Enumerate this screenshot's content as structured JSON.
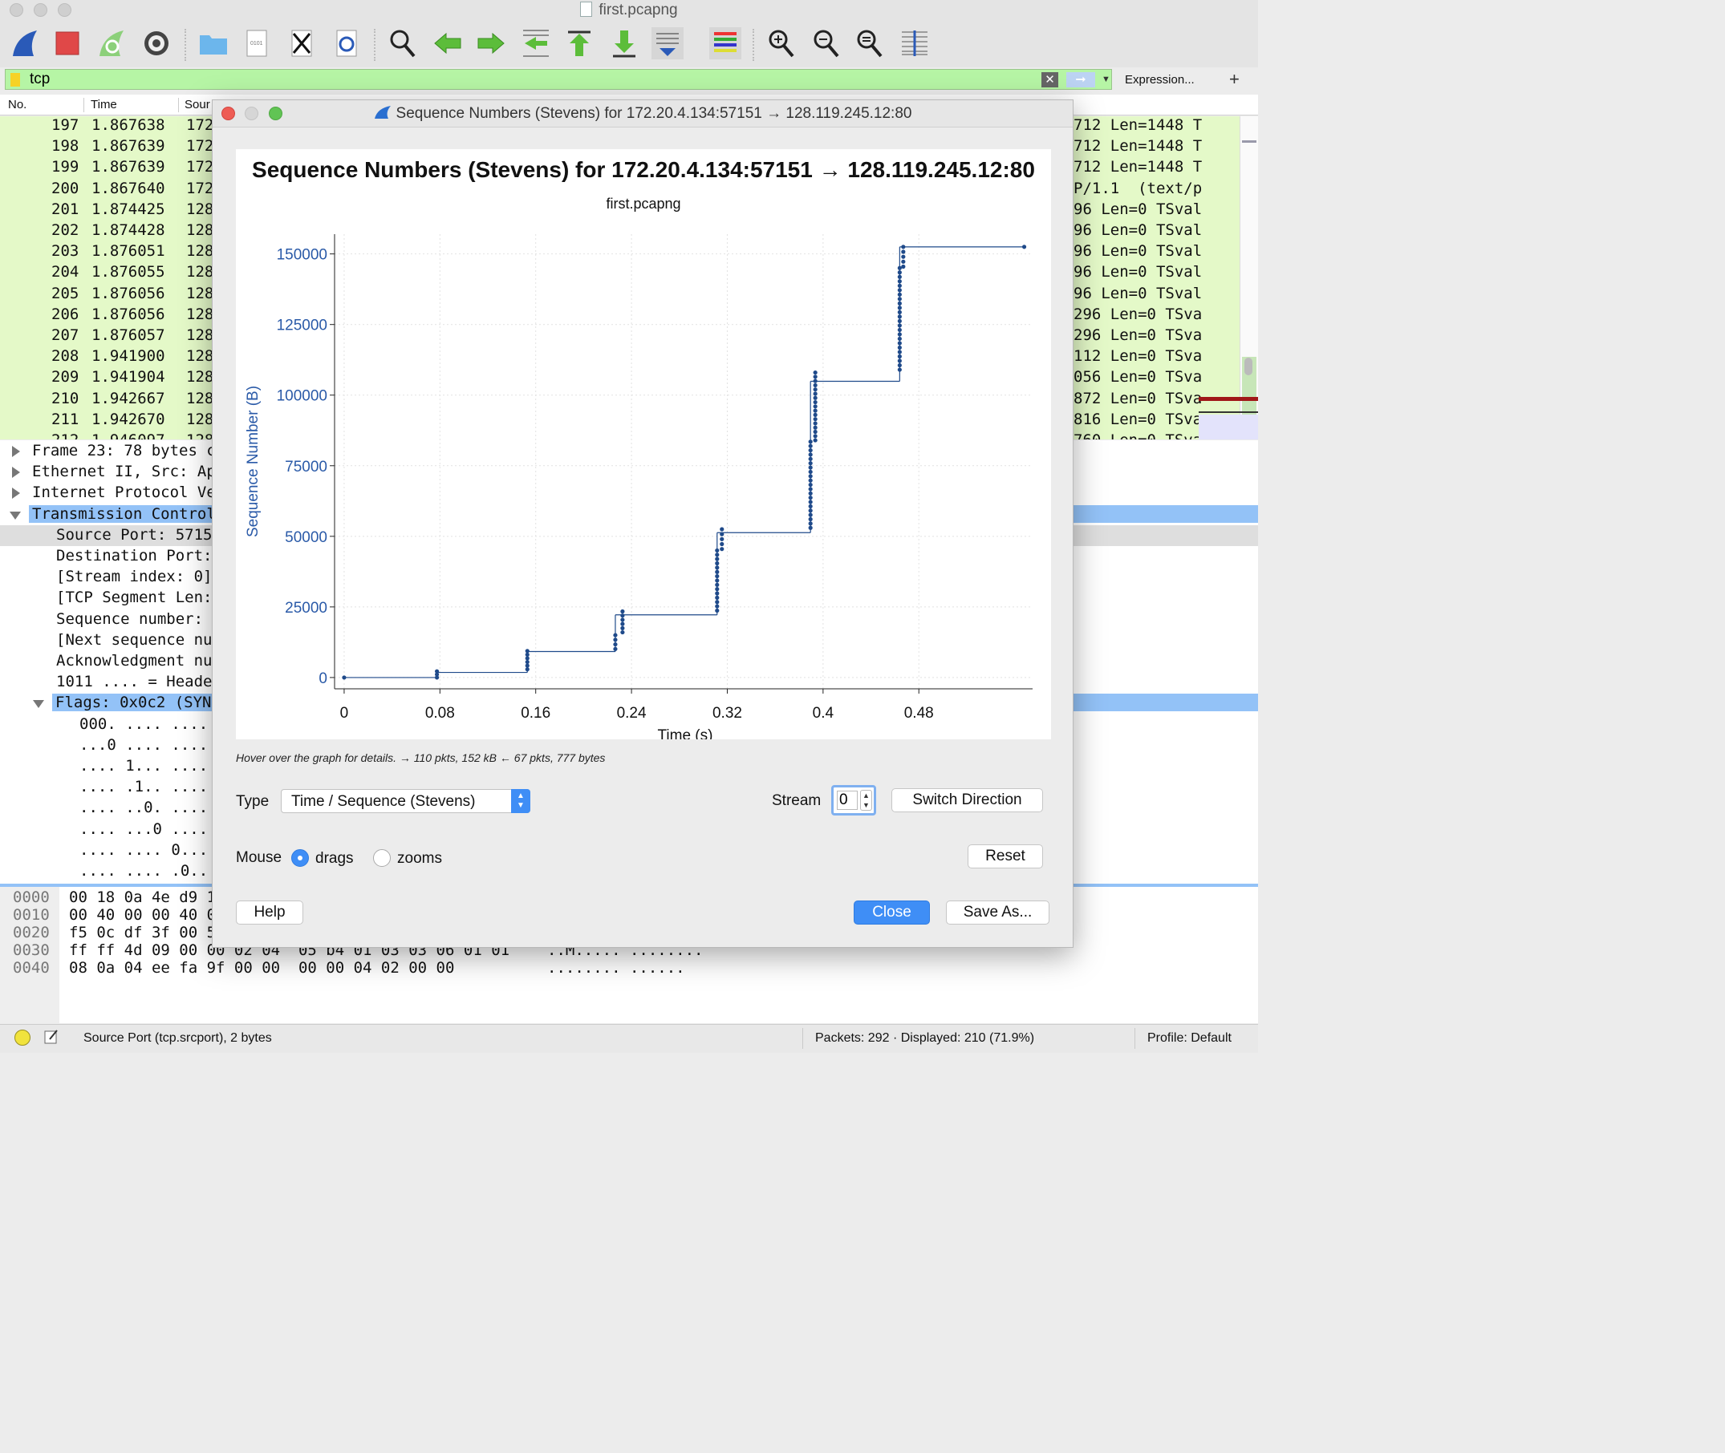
{
  "window": {
    "title": "first.pcapng"
  },
  "filter": {
    "value": "tcp",
    "expression_label": "Expression...",
    "add_label": "+"
  },
  "packet_list": {
    "columns": [
      "No.",
      "Time",
      "Sour"
    ],
    "rows": [
      {
        "no": "197",
        "time": "1.867638",
        "src": "172",
        "info": "712 Len=1448 T"
      },
      {
        "no": "198",
        "time": "1.867639",
        "src": "172",
        "info": "712 Len=1448 T"
      },
      {
        "no": "199",
        "time": "1.867639",
        "src": "172",
        "info": "712 Len=1448 T"
      },
      {
        "no": "200",
        "time": "1.867640",
        "src": "172",
        "info": "P/1.1  (text/p"
      },
      {
        "no": "201",
        "time": "1.874425",
        "src": "128",
        "info": "96 Len=0 TSval"
      },
      {
        "no": "202",
        "time": "1.874428",
        "src": "128",
        "info": "96 Len=0 TSval"
      },
      {
        "no": "203",
        "time": "1.876051",
        "src": "128",
        "info": "96 Len=0 TSval"
      },
      {
        "no": "204",
        "time": "1.876055",
        "src": "128",
        "info": "96 Len=0 TSval"
      },
      {
        "no": "205",
        "time": "1.876056",
        "src": "128",
        "info": "96 Len=0 TSval"
      },
      {
        "no": "206",
        "time": "1.876056",
        "src": "128",
        "info": "296 Len=0 TSva"
      },
      {
        "no": "207",
        "time": "1.876057",
        "src": "128",
        "info": "296 Len=0 TSva"
      },
      {
        "no": "208",
        "time": "1.941900",
        "src": "128",
        "info": "112 Len=0 TSva"
      },
      {
        "no": "209",
        "time": "1.941904",
        "src": "128",
        "info": "056 Len=0 TSva"
      },
      {
        "no": "210",
        "time": "1.942667",
        "src": "128",
        "info": "872 Len=0 TSva"
      },
      {
        "no": "211",
        "time": "1.942670",
        "src": "128",
        "info": "816 Len=0 TSva"
      },
      {
        "no": "212",
        "time": "1.946097",
        "src": "128",
        "info": "760 Len=0 TSva"
      }
    ]
  },
  "details": {
    "rows": [
      {
        "text": "Frame 23: 78 bytes c",
        "state": "collapsed"
      },
      {
        "text": "Ethernet II, Src: Ap",
        "state": "collapsed"
      },
      {
        "text": "Internet Protocol Ve",
        "state": "collapsed"
      },
      {
        "text": "Transmission Control",
        "state": "expanded"
      },
      {
        "text": "Source Port: 5715",
        "state": "leaf"
      },
      {
        "text": "Destination Port:",
        "state": "leaf"
      },
      {
        "text": "[Stream index: 0]",
        "state": "leaf"
      },
      {
        "text": "[TCP Segment Len:",
        "state": "leaf"
      },
      {
        "text": "Sequence number:",
        "state": "leaf"
      },
      {
        "text": "[Next sequence nu",
        "state": "leaf"
      },
      {
        "text": "Acknowledgment nu",
        "state": "leaf"
      },
      {
        "text": "1011 .... = Heade",
        "state": "leaf"
      },
      {
        "text": "Flags: 0x0c2 (SYN",
        "state": "expanded"
      },
      {
        "text": "000. .... ....",
        "state": "leaf"
      },
      {
        "text": "...0 .... ....",
        "state": "leaf"
      },
      {
        "text": ".... 1... ....",
        "state": "leaf"
      },
      {
        "text": ".... .1.. ....",
        "state": "leaf"
      },
      {
        "text": ".... ..0. ....",
        "state": "leaf"
      },
      {
        "text": ".... ...0 ....",
        "state": "leaf"
      },
      {
        "text": ".... .... 0...",
        "state": "leaf"
      },
      {
        "text": ".... .... .0..",
        "state": "leaf"
      }
    ]
  },
  "hex": {
    "rows": [
      {
        "offset": "0000",
        "bytes": "00 18 0a 4e d9 1",
        "ascii": ""
      },
      {
        "offset": "0010",
        "bytes": "00 40 00 00 40 0",
        "ascii": ""
      },
      {
        "offset": "0020",
        "bytes": "f5 0c df 3f 00 5",
        "ascii": ""
      },
      {
        "offset": "0030",
        "bytes": "ff ff 4d 09 00 00 02 04  05 b4 01 03 03 06 01 01",
        "ascii": "..M..... ........"
      },
      {
        "offset": "0040",
        "bytes": "08 0a 04 ee fa 9f 00 00  00 00 04 02 00 00",
        "ascii": "........ ......"
      }
    ]
  },
  "status": {
    "field": "Source Port (tcp.srcport), 2 bytes",
    "packets": "Packets: 292 · Displayed: 210 (71.9%)",
    "profile": "Profile: Default"
  },
  "dialog": {
    "title": "Sequence Numbers (Stevens) for 172.20.4.134:57151 → 128.119.245.12:80",
    "hover_hint": "Hover over the graph for details. → 110 pkts, 152 kB ← 67 pkts, 777 bytes",
    "type_label": "Type",
    "type_value": "Time / Sequence (Stevens)",
    "stream_label": "Stream",
    "stream_value": "0",
    "switch_direction": "Switch Direction",
    "mouse_label": "Mouse",
    "mouse_drags": "drags",
    "mouse_zooms": "zooms",
    "mouse_selected": "drags",
    "reset": "Reset",
    "help": "Help",
    "close": "Close",
    "save_as": "Save As..."
  },
  "chart_data": {
    "type": "scatter",
    "title": "Sequence Numbers (Stevens) for 172.20.4.134:57151 → 128.119.245.12:80",
    "subtitle": "first.pcapng",
    "xlabel": "Time (s)",
    "ylabel": "Sequence Number (B)",
    "xlim": [
      -0.008,
      0.575
    ],
    "ylim": [
      -4000,
      157000
    ],
    "xticks": [
      "0",
      "0.08",
      "0.16",
      "0.24",
      "0.32",
      "0.4",
      "0.48"
    ],
    "yticks": [
      "0",
      "25000",
      "50000",
      "75000",
      "100000",
      "125000",
      "150000"
    ],
    "grid": true,
    "colors": {
      "series": "#1f4a8a",
      "axis_text": "#2a5aa8",
      "grid": "#e2e2e2"
    },
    "bursts": [
      {
        "t": 0.0,
        "from": 0,
        "to": 0,
        "count": 1
      },
      {
        "t": 0.0775,
        "from": 0,
        "to": 2200,
        "count": 3
      },
      {
        "t": 0.153,
        "from": 2900,
        "to": 9400,
        "count": 6
      },
      {
        "t": 0.2265,
        "from": 10100,
        "to": 15000,
        "count": 4
      },
      {
        "t": 0.2325,
        "from": 16000,
        "to": 23400,
        "count": 6
      },
      {
        "t": 0.3115,
        "from": 23700,
        "to": 45000,
        "count": 15
      },
      {
        "t": 0.3155,
        "from": 45500,
        "to": 52500,
        "count": 5
      },
      {
        "t": 0.3895,
        "from": 53000,
        "to": 83500,
        "count": 21
      },
      {
        "t": 0.3935,
        "from": 84000,
        "to": 108000,
        "count": 17
      },
      {
        "t": 0.464,
        "from": 109000,
        "to": 145000,
        "count": 24
      },
      {
        "t": 0.467,
        "from": 145500,
        "to": 152500,
        "count": 5
      },
      {
        "t": 0.568,
        "from": 152500,
        "to": 152500,
        "count": 1
      }
    ],
    "window_steps": [
      {
        "x0": 0.0,
        "x1": 0.0775,
        "y": 0
      },
      {
        "x0": 0.0775,
        "x1": 0.153,
        "y": 1800
      },
      {
        "x0": 0.153,
        "x1": 0.2265,
        "y": 9200
      },
      {
        "x0": 0.2265,
        "x1": 0.3115,
        "y": 22200
      },
      {
        "x0": 0.3115,
        "x1": 0.3895,
        "y": 51300
      },
      {
        "x0": 0.3895,
        "x1": 0.464,
        "y": 104900
      },
      {
        "x0": 0.464,
        "x1": 0.568,
        "y": 152500
      }
    ]
  }
}
